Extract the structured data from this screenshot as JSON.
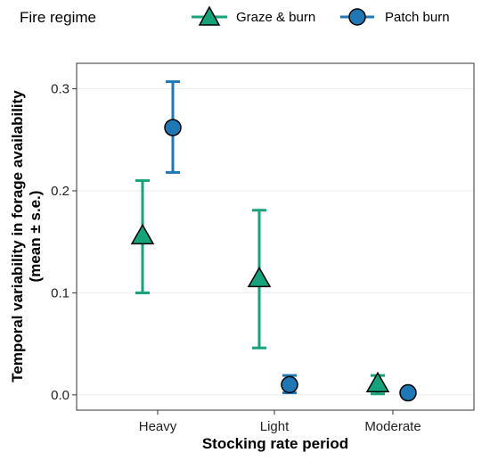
{
  "chart_data": {
    "type": "scatter",
    "title": "",
    "xlabel": "Stocking rate period",
    "ylabel_lines": [
      "Temporal variability in forage availability",
      "(mean ± s.e.)"
    ],
    "categories": [
      "Heavy",
      "Light",
      "Moderate"
    ],
    "ylim": [
      -0.015,
      0.325
    ],
    "yticks": [
      0.0,
      0.1,
      0.2,
      0.3
    ],
    "ytick_labels": [
      "0.0",
      "0.1",
      "0.2",
      "0.3"
    ],
    "grid": true,
    "legend": {
      "title": "Fire regime",
      "position": "top"
    },
    "series": [
      {
        "name": "Graze & burn",
        "marker": "triangle",
        "color": "#16a27a",
        "points": [
          {
            "category": "Heavy",
            "mean": 0.156,
            "lower": 0.1,
            "upper": 0.21
          },
          {
            "category": "Light",
            "mean": 0.114,
            "lower": 0.046,
            "upper": 0.181
          },
          {
            "category": "Moderate",
            "mean": 0.011,
            "lower": 0.001,
            "upper": 0.019
          }
        ]
      },
      {
        "name": "Patch burn",
        "marker": "circle",
        "color": "#1f77b4",
        "points": [
          {
            "category": "Heavy",
            "mean": 0.262,
            "lower": 0.218,
            "upper": 0.307
          },
          {
            "category": "Light",
            "mean": 0.01,
            "lower": 0.002,
            "upper": 0.019
          },
          {
            "category": "Moderate",
            "mean": 0.002,
            "lower": 0.001,
            "upper": 0.004
          }
        ]
      }
    ]
  }
}
